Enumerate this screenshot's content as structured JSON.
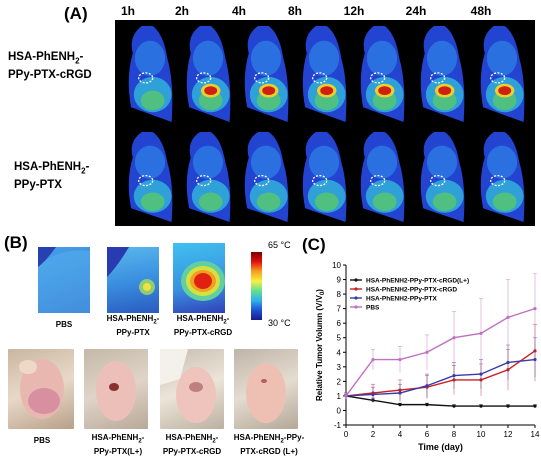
{
  "panel_a": {
    "letter": "(A)",
    "timepoints": [
      "1h",
      "2h",
      "4h",
      "8h",
      "12h",
      "24h",
      "48h"
    ],
    "row1_label": [
      "HSA-PhENH",
      "2",
      "-",
      "PPy-PTX-cRGD"
    ],
    "row2_label": [
      "HSA-PhENH",
      "2",
      "-",
      "PPy-PTX"
    ]
  },
  "panel_b": {
    "letter": "(B)",
    "scale_max": "65 °C",
    "scale_min": "30 °C",
    "thermal_labels": {
      "pbs": "PBS",
      "ptx": [
        "HSA-PhENH",
        "2",
        "-",
        "PPy-PTX"
      ],
      "rgd": [
        "HSA-PhENH",
        "2",
        "-",
        "PPy-PTX-cRGD"
      ]
    },
    "photo_labels": {
      "pbs": "PBS",
      "ptx_l": [
        "HSA-PhENH",
        "2",
        "-",
        "PPy-PTX(L+)"
      ],
      "rgd": [
        "HSA-PhENH",
        "2",
        "-",
        "PPy-PTX-cRGD"
      ],
      "rgd_l": [
        "HSA-PhENH",
        "2",
        "-PPy-",
        "PTX-cRGD (L+)"
      ]
    },
    "colors": {
      "cold": "#1f1f9a",
      "hot": "#d01010"
    }
  },
  "panel_c": {
    "letter": "(C)"
  },
  "chart_data": {
    "type": "line",
    "xlabel": "Time (day)",
    "ylabel": "Relative Tumor Volumn (V/V",
    "ylabel_sub": "0",
    "ylabel_close": ")",
    "xlim": [
      0,
      14
    ],
    "ylim": [
      -1,
      10
    ],
    "xticks": [
      0,
      2,
      4,
      6,
      8,
      10,
      12,
      14
    ],
    "yticks": [
      -1,
      0,
      1,
      2,
      3,
      4,
      5,
      6,
      7,
      8,
      9,
      10
    ],
    "legend_position": "top-left",
    "x": [
      0,
      2,
      4,
      6,
      8,
      10,
      12,
      14
    ],
    "series": [
      {
        "name": "HSA-PhENH2-PPy-PTX-cRGD(L+)",
        "color": "#111111",
        "values": [
          1.0,
          0.7,
          0.4,
          0.4,
          0.3,
          0.3,
          0.3,
          0.3
        ],
        "errors": [
          0.1,
          0.15,
          0.1,
          0.1,
          0.1,
          0.1,
          0.1,
          0.1
        ]
      },
      {
        "name": "HSA-PhENH2-PPy-PTX-cRGD",
        "color": "#cc2020",
        "values": [
          1.0,
          1.2,
          1.4,
          1.6,
          2.1,
          2.1,
          2.8,
          4.1
        ],
        "errors": [
          0.2,
          0.6,
          0.7,
          0.8,
          1.0,
          1.1,
          1.4,
          1.8
        ]
      },
      {
        "name": "HSA-PhENH2-PPy-PTX",
        "color": "#3a3aa8",
        "values": [
          1.0,
          1.1,
          1.2,
          1.7,
          2.4,
          2.5,
          3.3,
          3.5
        ],
        "errors": [
          0.2,
          0.5,
          0.6,
          0.8,
          0.9,
          1.0,
          1.2,
          1.5
        ]
      },
      {
        "name": "PBS",
        "color": "#c070c0",
        "values": [
          1.0,
          3.5,
          3.5,
          4.0,
          5.0,
          5.3,
          6.4,
          7.0
        ],
        "errors": [
          0.2,
          0.7,
          0.9,
          1.2,
          1.8,
          2.4,
          2.6,
          2.4
        ]
      }
    ]
  }
}
